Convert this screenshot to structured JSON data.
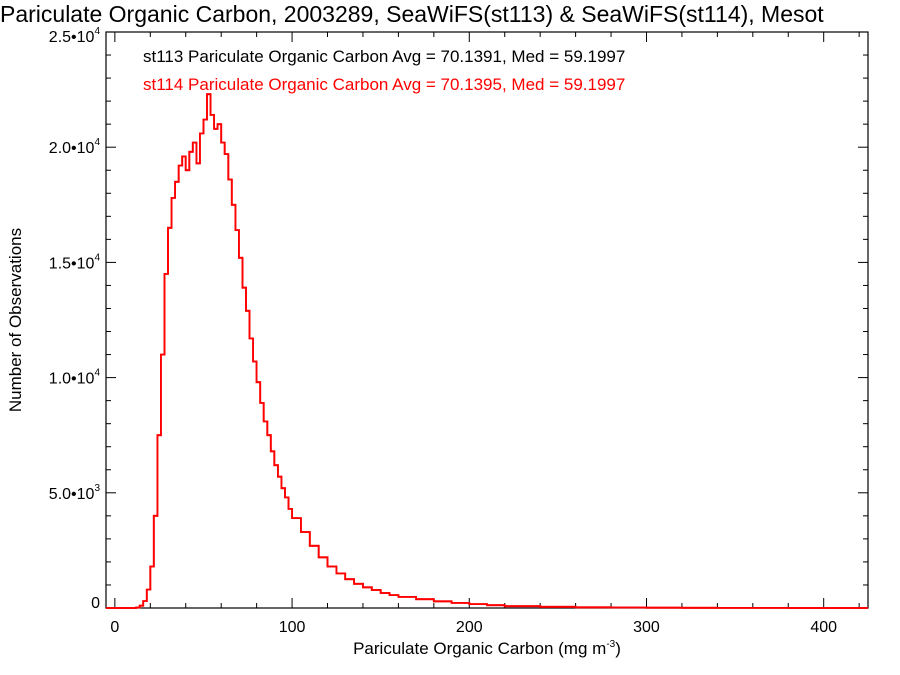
{
  "chart_data": {
    "type": "line",
    "title": "Pariculate Organic Carbon, 2003289, SeaWiFS(st113) & SeaWiFS(st114), Mesot",
    "xlabel": "Pariculate Organic Carbon (mg m",
    "xlabel_sup": "-3",
    "xlabel_suffix": ")",
    "ylabel": "Number of Observations",
    "xlim": [
      -5,
      425
    ],
    "ylim": [
      0,
      25000
    ],
    "x_ticks": [
      {
        "value": 0,
        "label": "0"
      },
      {
        "value": 100,
        "label": "100"
      },
      {
        "value": 200,
        "label": "200"
      },
      {
        "value": 300,
        "label": "300"
      },
      {
        "value": 400,
        "label": "400"
      }
    ],
    "y_ticks": [
      {
        "value": 0,
        "mantissa": "0",
        "exp": ""
      },
      {
        "value": 5000,
        "mantissa": "5.0•10",
        "exp": "3"
      },
      {
        "value": 10000,
        "mantissa": "1.0•10",
        "exp": "4"
      },
      {
        "value": 15000,
        "mantissa": "1.5•10",
        "exp": "4"
      },
      {
        "value": 20000,
        "mantissa": "2.0•10",
        "exp": "4"
      },
      {
        "value": 25000,
        "mantissa": "2.5•10",
        "exp": "4"
      }
    ],
    "annotations": [
      {
        "text": "st113 Pariculate Organic Carbon Avg = 70.1391, Med = 59.1997",
        "color": "#000000"
      },
      {
        "text": "st114 Pariculate Organic Carbon Avg = 70.1395, Med = 59.1997",
        "color": "#ff0000"
      }
    ],
    "bin_width": 2,
    "series": [
      {
        "color": "#ff0000",
        "x": [
          -5,
          10,
          12,
          14,
          16,
          18,
          20,
          22,
          24,
          26,
          28,
          30,
          32,
          34,
          36,
          38,
          40,
          42,
          44,
          46,
          48,
          50,
          52,
          54,
          56,
          58,
          60,
          62,
          64,
          66,
          68,
          70,
          72,
          74,
          76,
          78,
          80,
          82,
          84,
          86,
          88,
          90,
          92,
          94,
          96,
          98,
          100,
          105,
          110,
          115,
          120,
          125,
          130,
          135,
          140,
          145,
          150,
          155,
          160,
          170,
          180,
          190,
          200,
          210,
          220,
          240,
          260,
          280,
          300,
          320,
          340,
          360,
          380,
          400,
          425
        ],
        "y": [
          0,
          0,
          20,
          100,
          300,
          800,
          1800,
          4000,
          7500,
          11000,
          14500,
          16500,
          17800,
          18500,
          19200,
          19600,
          19000,
          19800,
          20200,
          19300,
          20600,
          21200,
          22300,
          21400,
          20800,
          21000,
          20200,
          19700,
          18600,
          17500,
          16400,
          15200,
          13900,
          12900,
          11700,
          10700,
          9800,
          8900,
          8100,
          7500,
          6800,
          6200,
          5700,
          5200,
          4800,
          4300,
          3900,
          3300,
          2700,
          2200,
          1800,
          1500,
          1250,
          1050,
          900,
          780,
          650,
          560,
          480,
          380,
          290,
          220,
          170,
          120,
          80,
          50,
          30,
          20,
          12,
          8,
          5,
          3,
          2,
          1,
          0
        ]
      },
      {
        "color": "#ff0000",
        "x": [
          -5,
          10,
          12,
          14,
          16,
          18,
          20,
          22,
          24,
          26,
          28,
          30,
          32,
          34,
          36,
          38,
          40,
          42,
          44,
          46,
          48,
          50,
          52,
          54,
          56,
          58,
          60,
          62,
          64,
          66,
          68,
          70,
          72,
          74,
          76,
          78,
          80,
          82,
          84,
          86,
          88,
          90,
          92,
          94,
          96,
          98,
          100,
          105,
          110,
          115,
          120,
          125,
          130,
          135,
          140,
          145,
          150,
          155,
          160,
          170,
          180,
          190,
          200,
          210,
          220,
          240,
          260,
          280,
          300,
          320,
          340,
          360,
          380,
          400,
          425
        ],
        "y": [
          0,
          0,
          20,
          100,
          300,
          800,
          1800,
          4000,
          7500,
          11000,
          14500,
          16500,
          17800,
          18500,
          19200,
          19600,
          19000,
          19800,
          20200,
          19300,
          20600,
          21200,
          22300,
          21400,
          20800,
          21000,
          20200,
          19700,
          18600,
          17500,
          16400,
          15200,
          13900,
          12900,
          11700,
          10700,
          9800,
          8900,
          8100,
          7500,
          6800,
          6200,
          5700,
          5200,
          4800,
          4300,
          3900,
          3300,
          2700,
          2200,
          1800,
          1500,
          1250,
          1050,
          900,
          780,
          650,
          560,
          480,
          380,
          290,
          220,
          170,
          120,
          80,
          50,
          30,
          20,
          12,
          8,
          5,
          3,
          2,
          1,
          0
        ]
      }
    ]
  }
}
